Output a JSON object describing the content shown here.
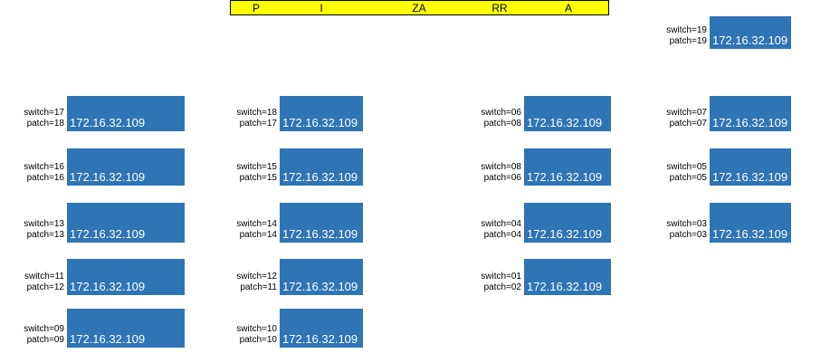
{
  "banner": {
    "letters": [
      "P",
      "I",
      "ZA",
      "RR",
      "A"
    ]
  },
  "nodes": [
    {
      "switch": "switch=19",
      "patch": "patch=19",
      "ip": "172.16.32.109"
    },
    {
      "switch": "switch=17",
      "patch": "patch=18",
      "ip": "172.16.32.109"
    },
    {
      "switch": "switch=18",
      "patch": "patch=17",
      "ip": "172.16.32.109"
    },
    {
      "switch": "switch=06",
      "patch": "patch=08",
      "ip": "172.16.32.109"
    },
    {
      "switch": "switch=07",
      "patch": "patch=07",
      "ip": "172.16.32.109"
    },
    {
      "switch": "switch=16",
      "patch": "patch=16",
      "ip": "172.16.32.109"
    },
    {
      "switch": "switch=15",
      "patch": "patch=15",
      "ip": "172.16.32.109"
    },
    {
      "switch": "switch=08",
      "patch": "patch=06",
      "ip": "172.16.32.109"
    },
    {
      "switch": "switch=05",
      "patch": "patch=05",
      "ip": "172.16.32.109"
    },
    {
      "switch": "switch=13",
      "patch": "patch=13",
      "ip": "172.16.32.109"
    },
    {
      "switch": "switch=14",
      "patch": "patch=14",
      "ip": "172.16.32.109"
    },
    {
      "switch": "switch=04",
      "patch": "patch=04",
      "ip": "172.16.32.109"
    },
    {
      "switch": "switch=03",
      "patch": "patch=03",
      "ip": "172.16.32.109"
    },
    {
      "switch": "switch=11",
      "patch": "patch=12",
      "ip": "172.16.32.109"
    },
    {
      "switch": "switch=12",
      "patch": "patch=11",
      "ip": "172.16.32.109"
    },
    {
      "switch": "switch=01",
      "patch": "patch=02",
      "ip": "172.16.32.109"
    },
    {
      "switch": "switch=09",
      "patch": "patch=09",
      "ip": "172.16.32.109"
    },
    {
      "switch": "switch=10",
      "patch": "patch=10",
      "ip": "172.16.32.109"
    }
  ]
}
